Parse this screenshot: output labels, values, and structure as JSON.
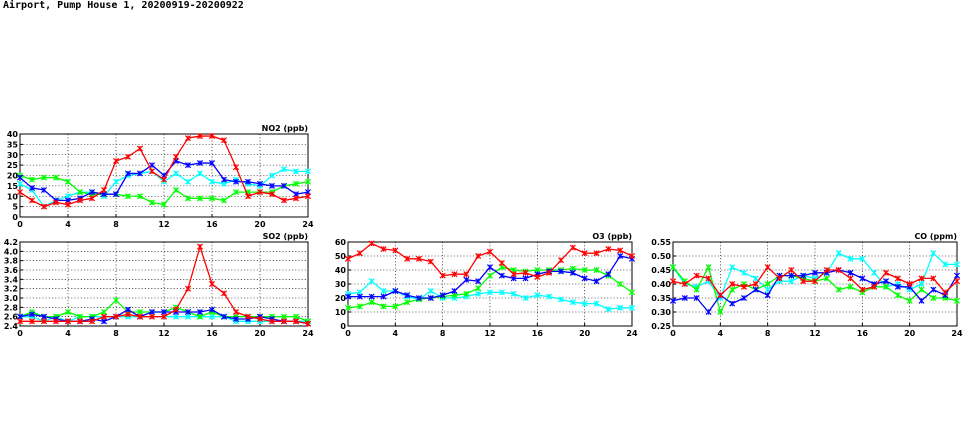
{
  "page": {
    "title": "Airport, Pump House 1, 20200919-20200922"
  },
  "chart_data": [
    {
      "type": "line",
      "title": "NO2 (ppb)",
      "x": [
        0,
        1,
        2,
        3,
        4,
        5,
        6,
        7,
        8,
        9,
        10,
        11,
        12,
        13,
        14,
        15,
        16,
        17,
        18,
        19,
        20,
        21,
        22,
        23,
        24
      ],
      "xlim": [
        0,
        24
      ],
      "xticks": [
        0,
        4,
        8,
        12,
        16,
        20,
        24
      ],
      "ylim": [
        0,
        40
      ],
      "yticks": [
        0,
        5,
        10,
        15,
        20,
        25,
        30,
        35,
        40
      ],
      "ytick_labels": [
        "0",
        "5",
        "10",
        "15",
        "20",
        "25",
        "30",
        "35",
        "40"
      ],
      "grid": true,
      "series": [
        {
          "color": "#00ffff",
          "values": [
            16,
            13,
            5,
            8,
            10,
            12,
            12,
            10,
            17,
            20,
            21,
            22,
            17,
            21,
            17,
            21,
            17,
            16,
            18,
            16,
            15,
            20,
            23,
            22,
            22
          ]
        },
        {
          "color": "#00ff00",
          "values": [
            20,
            18,
            19,
            19,
            17,
            12,
            11,
            11,
            11,
            10,
            10,
            7,
            6,
            13,
            9,
            9,
            9,
            8,
            12,
            12,
            12,
            12,
            15,
            16,
            17
          ]
        },
        {
          "color": "#0000ff",
          "values": [
            19,
            14,
            13,
            8,
            8,
            9,
            12,
            11,
            11,
            21,
            21,
            25,
            20,
            27,
            25,
            26,
            26,
            18,
            17,
            17,
            16,
            15,
            15,
            11,
            12
          ]
        },
        {
          "color": "#ff0000",
          "values": [
            12,
            8,
            5,
            7,
            6,
            8,
            9,
            13,
            27,
            29,
            33,
            22,
            18,
            29,
            38,
            39,
            39,
            37,
            24,
            10,
            12,
            11,
            8,
            9,
            10
          ]
        }
      ]
    },
    {
      "type": "line",
      "title": "SO2 (ppb)",
      "x": [
        0,
        1,
        2,
        3,
        4,
        5,
        6,
        7,
        8,
        9,
        10,
        11,
        12,
        13,
        14,
        15,
        16,
        17,
        18,
        19,
        20,
        21,
        22,
        23,
        24
      ],
      "xlim": [
        0,
        24
      ],
      "xticks": [
        0,
        4,
        8,
        12,
        16,
        20,
        24
      ],
      "ylim": [
        2.4,
        4.2
      ],
      "yticks": [
        2.4,
        2.6,
        2.8,
        3.0,
        3.2,
        3.4,
        3.6,
        3.8,
        4.0,
        4.2
      ],
      "ytick_labels": [
        "2.4",
        "2.6",
        "2.8",
        "3.0",
        "3.2",
        "3.4",
        "3.6",
        "3.8",
        "4.0",
        "4.2"
      ],
      "grid": true,
      "series": [
        {
          "color": "#00ffff",
          "values": [
            2.6,
            2.6,
            2.5,
            2.6,
            2.5,
            2.6,
            2.6,
            2.6,
            2.6,
            2.6,
            2.6,
            2.6,
            2.6,
            2.6,
            2.6,
            2.6,
            2.6,
            2.6,
            2.5,
            2.5,
            2.5,
            2.5,
            2.5,
            2.5,
            2.5
          ]
        },
        {
          "color": "#00ff00",
          "values": [
            2.6,
            2.7,
            2.6,
            2.6,
            2.7,
            2.6,
            2.6,
            2.7,
            2.95,
            2.7,
            2.7,
            2.7,
            2.7,
            2.8,
            2.7,
            2.6,
            2.7,
            2.6,
            2.6,
            2.6,
            2.6,
            2.6,
            2.6,
            2.6,
            2.5
          ]
        },
        {
          "color": "#0000ff",
          "values": [
            2.6,
            2.65,
            2.6,
            2.55,
            2.5,
            2.5,
            2.55,
            2.5,
            2.6,
            2.75,
            2.6,
            2.7,
            2.7,
            2.7,
            2.7,
            2.7,
            2.75,
            2.6,
            2.55,
            2.55,
            2.6,
            2.55,
            2.5,
            2.5,
            2.45
          ]
        },
        {
          "color": "#ff0000",
          "values": [
            2.5,
            2.5,
            2.5,
            2.5,
            2.5,
            2.5,
            2.5,
            2.6,
            2.6,
            2.65,
            2.6,
            2.6,
            2.6,
            2.75,
            3.2,
            4.1,
            3.3,
            3.1,
            2.7,
            2.6,
            2.55,
            2.5,
            2.5,
            2.5,
            2.45
          ]
        }
      ]
    },
    {
      "type": "line",
      "title": "O3 (ppb)",
      "x": [
        0,
        1,
        2,
        3,
        4,
        5,
        6,
        7,
        8,
        9,
        10,
        11,
        12,
        13,
        14,
        15,
        16,
        17,
        18,
        19,
        20,
        21,
        22,
        23,
        24
      ],
      "xlim": [
        0,
        24
      ],
      "xticks": [
        0,
        4,
        8,
        12,
        16,
        20,
        24
      ],
      "ylim": [
        0,
        60
      ],
      "yticks": [
        0,
        10,
        20,
        30,
        40,
        50,
        60
      ],
      "ytick_labels": [
        "0",
        "10",
        "20",
        "30",
        "40",
        "50",
        "60"
      ],
      "grid": true,
      "series": [
        {
          "color": "#00ffff",
          "values": [
            23,
            24,
            32,
            25,
            25,
            21,
            19,
            25,
            20,
            20,
            21,
            23,
            24,
            24,
            23,
            20,
            22,
            21,
            19,
            17,
            16,
            16,
            12,
            13,
            13
          ]
        },
        {
          "color": "#00ff00",
          "values": [
            13,
            14,
            17,
            14,
            14,
            17,
            19,
            20,
            21,
            22,
            23,
            27,
            36,
            42,
            40,
            39,
            40,
            40,
            40,
            41,
            40,
            40,
            36,
            30,
            24
          ]
        },
        {
          "color": "#0000ff",
          "values": [
            21,
            21,
            21,
            21,
            25,
            22,
            20,
            20,
            22,
            25,
            33,
            32,
            42,
            36,
            34,
            34,
            37,
            39,
            39,
            38,
            34,
            32,
            37,
            50,
            48
          ]
        },
        {
          "color": "#ff0000",
          "values": [
            48,
            52,
            59,
            55,
            54,
            48,
            48,
            46,
            36,
            37,
            37,
            50,
            53,
            45,
            37,
            38,
            35,
            38,
            47,
            56,
            52,
            52,
            55,
            54,
            50
          ]
        }
      ]
    },
    {
      "type": "line",
      "title": "CO (ppm)",
      "x": [
        0,
        1,
        2,
        3,
        4,
        5,
        6,
        7,
        8,
        9,
        10,
        11,
        12,
        13,
        14,
        15,
        16,
        17,
        18,
        19,
        20,
        21,
        22,
        23,
        24
      ],
      "xlim": [
        0,
        24
      ],
      "xticks": [
        0,
        4,
        8,
        12,
        16,
        20,
        24
      ],
      "ylim": [
        0.25,
        0.55
      ],
      "yticks": [
        0.25,
        0.3,
        0.35,
        0.4,
        0.45,
        0.5,
        0.55
      ],
      "ytick_labels": [
        "0.25",
        "0.30",
        "0.35",
        "0.40",
        "0.45",
        "0.50",
        "0.55"
      ],
      "grid": true,
      "series": [
        {
          "color": "#00ffff",
          "values": [
            0.46,
            0.4,
            0.39,
            0.41,
            0.35,
            0.46,
            0.44,
            0.42,
            0.38,
            0.41,
            0.41,
            0.43,
            0.42,
            0.44,
            0.51,
            0.49,
            0.49,
            0.44,
            0.39,
            0.4,
            0.38,
            0.4,
            0.51,
            0.47,
            0.47
          ]
        },
        {
          "color": "#00ff00",
          "values": [
            0.46,
            0.41,
            0.38,
            0.46,
            0.3,
            0.38,
            0.4,
            0.38,
            0.4,
            0.43,
            0.43,
            0.42,
            0.41,
            0.42,
            0.38,
            0.39,
            0.37,
            0.39,
            0.39,
            0.36,
            0.34,
            0.38,
            0.35,
            0.35,
            0.34
          ]
        },
        {
          "color": "#0000ff",
          "values": [
            0.34,
            0.35,
            0.35,
            0.3,
            0.36,
            0.33,
            0.35,
            0.38,
            0.36,
            0.43,
            0.43,
            0.43,
            0.44,
            0.44,
            0.45,
            0.44,
            0.42,
            0.4,
            0.41,
            0.39,
            0.39,
            0.34,
            0.38,
            0.36,
            0.43
          ]
        },
        {
          "color": "#ff0000",
          "values": [
            0.41,
            0.4,
            0.43,
            0.42,
            0.36,
            0.4,
            0.39,
            0.4,
            0.46,
            0.42,
            0.45,
            0.41,
            0.41,
            0.45,
            0.45,
            0.42,
            0.38,
            0.39,
            0.44,
            0.42,
            0.4,
            0.42,
            0.42,
            0.37,
            0.41
          ]
        }
      ]
    }
  ]
}
